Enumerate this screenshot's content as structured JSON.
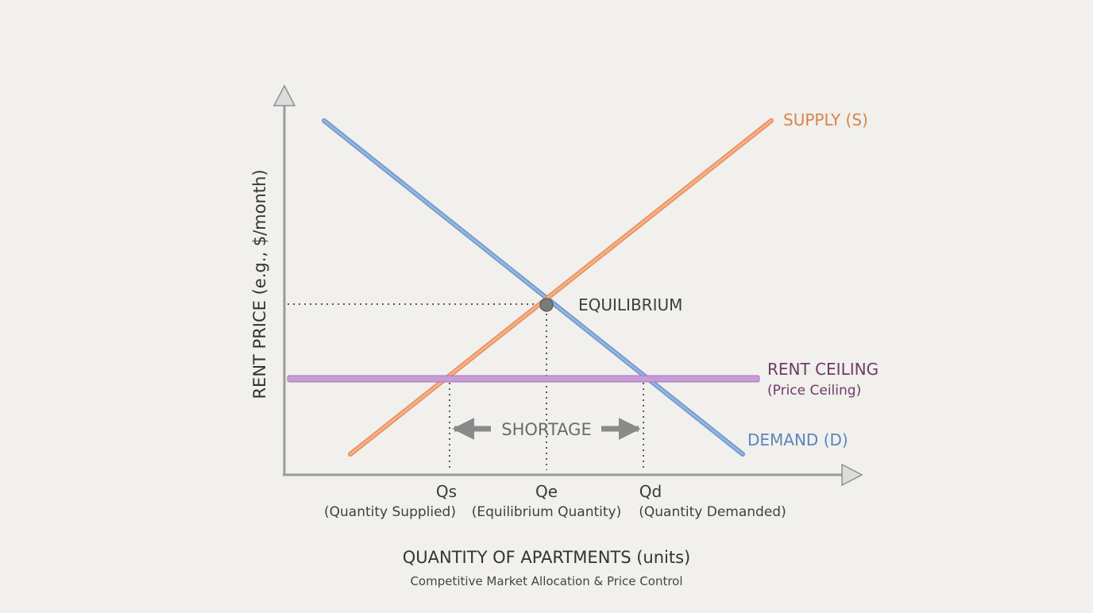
{
  "diagram": {
    "y_axis_label": "RENT PRICE (e.g., $/month)",
    "x_axis_label": "QUANTITY OF APARTMENTS (units)",
    "caption": "Competitive Market Allocation & Price Control",
    "supply_label": "SUPPLY (S)",
    "demand_label": "DEMAND (D)",
    "ceiling_label": "RENT CEILING",
    "ceiling_sublabel": "(Price Ceiling)",
    "equilibrium_label": "EQUILIBRIUM",
    "shortage_label": "SHORTAGE",
    "qs_label": "Qs",
    "qs_sublabel": "(Quantity Supplied)",
    "qe_label": "Qe",
    "qe_sublabel": "(Equilibrium Quantity)",
    "qd_label": "Qd",
    "qd_sublabel": "(Quantity Demanded)",
    "colors": {
      "background": "#f1f0ec",
      "axis": "#9a9a9a",
      "supply": "#ef9f70",
      "supply_text": "#d9834c",
      "demand": "#7fa6dc",
      "demand_text": "#5b86bb",
      "ceiling": "#c79ad6",
      "ceiling_text": "#6f3a6a",
      "equilibrium_point": "#7b7b7b",
      "guides": "#5a5a5a",
      "shortage": "#8a8a8a"
    }
  }
}
